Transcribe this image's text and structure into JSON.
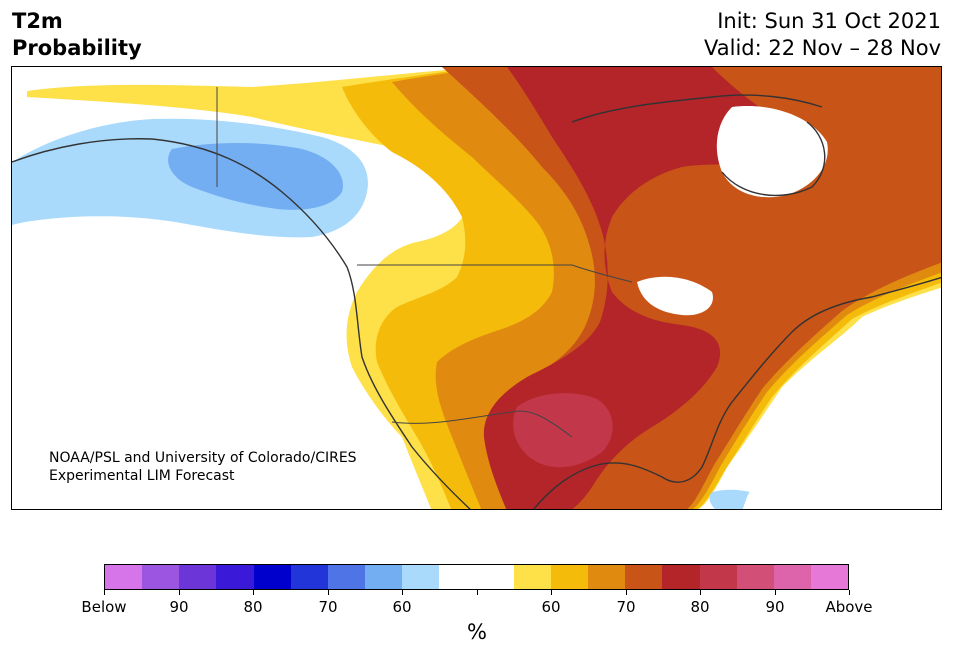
{
  "header": {
    "title_line1": "T2m",
    "title_line2": "Probability",
    "init": "Init: Sun 31 Oct 2021",
    "valid": "Valid: 22 Nov – 28 Nov"
  },
  "credit": {
    "line1": "NOAA/PSL and University of Colorado/CIRES",
    "line2": "Experimental LIM Forecast"
  },
  "colorbar": {
    "unit": "%",
    "colors": [
      "#d575e9",
      "#9b55e0",
      "#6b35d8",
      "#3a1ad8",
      "#0000cd",
      "#2235d8",
      "#4f74e6",
      "#74aef2",
      "#a9dafc",
      "#ffffff",
      "#ffffff",
      "#fee048",
      "#f4bb0a",
      "#e08b10",
      "#c85418",
      "#b4252a",
      "#c2384a",
      "#d25078",
      "#dd64ab",
      "#e679d8"
    ],
    "tick_labels": [
      "Below",
      "90",
      "80",
      "70",
      "60",
      "",
      "60",
      "70",
      "80",
      "90",
      "Above"
    ]
  },
  "map": {
    "shading_colors": {
      "below_60": "#a9dafc",
      "below_70": "#74aef2",
      "above_60": "#fee048",
      "above_70": "#f4bb0a",
      "above_75": "#e08b10",
      "above_80": "#c85418",
      "above_85": "#b4252a",
      "above_90": "#c2384a",
      "coast": "#333333"
    }
  }
}
